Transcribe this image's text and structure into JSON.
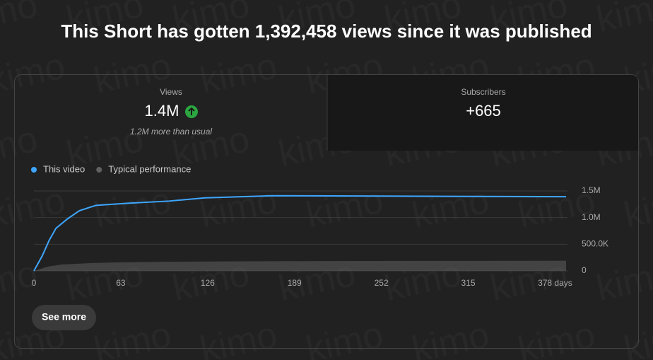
{
  "header": {
    "title": "This Short has gotten 1,392,458 views since it was published"
  },
  "watermark": "kimo",
  "tabs": [
    {
      "label": "Views",
      "value": "1.4M",
      "note": "1.2M more than usual"
    },
    {
      "label": "Subscribers",
      "value": "+665"
    }
  ],
  "chart_data": {
    "type": "line",
    "series": [
      {
        "name": "This video",
        "color": "#3ea6ff",
        "x": [
          0,
          6,
          11,
          16,
          24,
          33,
          45,
          68,
          98,
          124,
          173,
          386
        ],
        "values": [
          0,
          280000,
          570000,
          800000,
          970000,
          1130000,
          1230000,
          1270000,
          1310000,
          1370000,
          1410000,
          1392458
        ]
      },
      {
        "name": "Typical performance",
        "color": "#606060",
        "area": true,
        "x": [
          0,
          10,
          20,
          40,
          60,
          100,
          150,
          250,
          386
        ],
        "values": [
          0,
          80000,
          120000,
          145000,
          160000,
          172000,
          180000,
          186000,
          190000
        ]
      }
    ],
    "xlim": [
      0,
      387
    ],
    "xticks": [
      0,
      63,
      126,
      189,
      252,
      315,
      {
        "value": 378,
        "label": "378 days"
      }
    ],
    "ylim": [
      0,
      1500000
    ],
    "yticks": [
      0,
      {
        "value": 500000,
        "label": "500.0K"
      },
      {
        "value": 1000000,
        "label": "1.0M"
      },
      {
        "value": 1500000,
        "label": "1.5M"
      }
    ],
    "grid": true
  },
  "button": {
    "label": "See more"
  }
}
